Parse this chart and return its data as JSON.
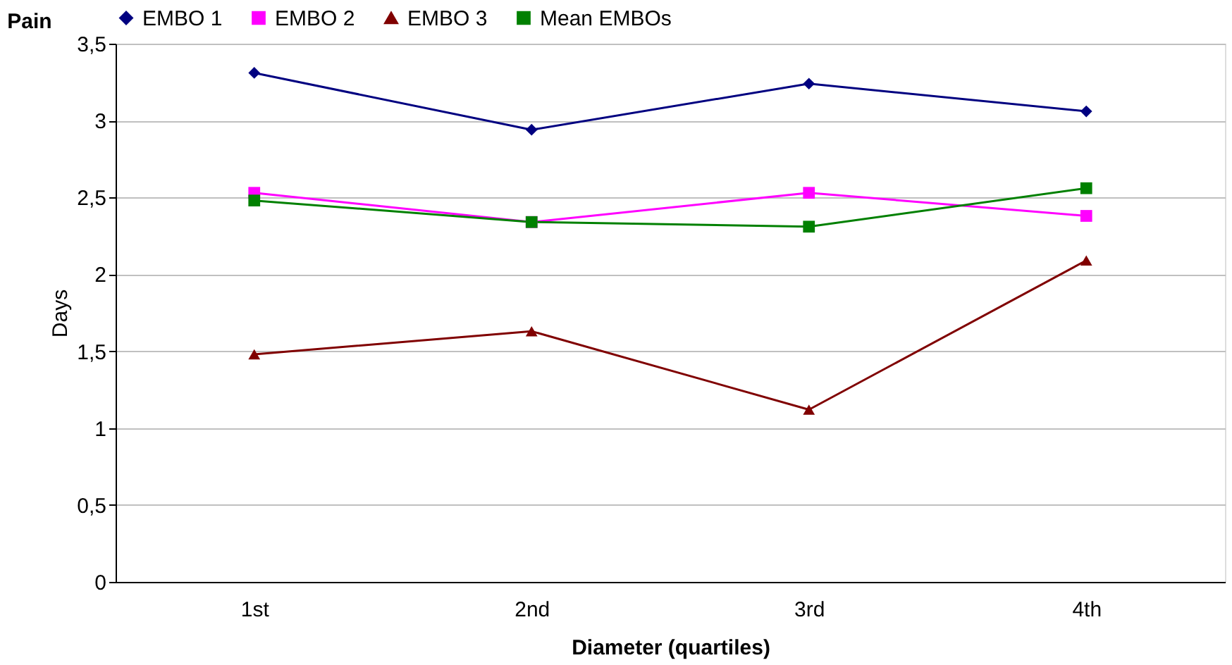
{
  "chart_data": {
    "type": "line",
    "title": "Pain",
    "xlabel": "Diameter (quartiles)",
    "ylabel": "Days",
    "categories": [
      "1st",
      "2nd",
      "3rd",
      "4th"
    ],
    "series": [
      {
        "name": "EMBO 1",
        "color": "#000080",
        "marker": "diamond",
        "values": [
          3.31,
          2.94,
          3.24,
          3.06
        ]
      },
      {
        "name": "EMBO 2",
        "color": "#ff00ff",
        "marker": "square",
        "values": [
          2.53,
          2.34,
          2.53,
          2.38
        ]
      },
      {
        "name": "EMBO 3",
        "color": "#800000",
        "marker": "triangle",
        "values": [
          1.48,
          1.63,
          1.12,
          2.09
        ]
      },
      {
        "name": "Mean EMBOs",
        "color": "#008000",
        "marker": "square",
        "values": [
          2.48,
          2.34,
          2.31,
          2.56
        ]
      }
    ],
    "ylim": [
      0,
      3.5
    ],
    "yticks": [
      0,
      {
        "value": 0.5,
        "label": "0,5"
      },
      1,
      {
        "value": 1.5,
        "label": "1,5"
      },
      2,
      {
        "value": 2.5,
        "label": "2,5"
      },
      3,
      {
        "value": 3.5,
        "label": "3,5"
      }
    ],
    "grid": "y",
    "legend": "top",
    "line_style": "solid"
  }
}
